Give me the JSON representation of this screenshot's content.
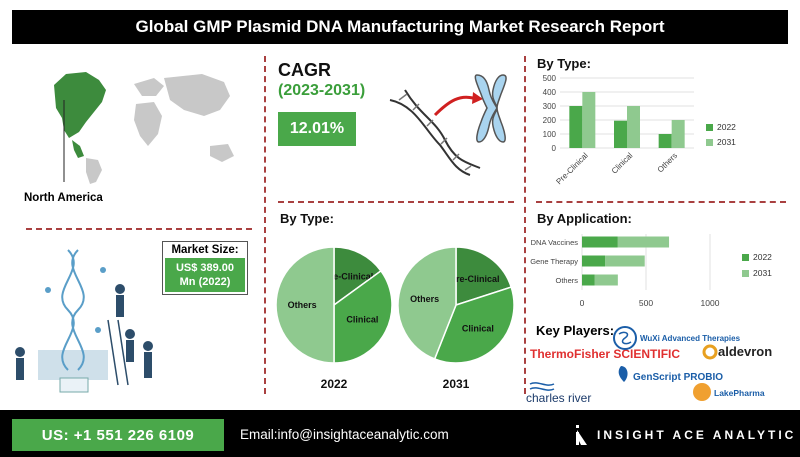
{
  "header": {
    "title": "Global GMP Plasmid DNA Manufacturing Market Research Report"
  },
  "region": {
    "label": "North America"
  },
  "market_size": {
    "heading": "Market Size:",
    "value_line1": "US$ 389.00",
    "value_line2": "Mn (2022)"
  },
  "cagr": {
    "heading": "CAGR",
    "period": "(2023-2031)",
    "value": "12.01%"
  },
  "pie_section": {
    "heading": "By Type:"
  },
  "bar_type_section": {
    "heading": "By Type:"
  },
  "bar_app_section": {
    "heading": "By Application:"
  },
  "key_players": {
    "heading": "Key Players:",
    "logos": [
      "ThermoFisher SCIENTIFIC",
      "WuXi Advanced Therapies",
      "aldevron",
      "GenScript PROBIO",
      "charles river",
      "LakePharma"
    ]
  },
  "footer": {
    "phone": "US: +1 551 226 6109",
    "email": "Email:info@insightaceanalytic.com",
    "brand": "INSIGHT ACE ANALYTIC"
  },
  "colors": {
    "dark_green": "#3d8b3d",
    "mid_green": "#4aa84a",
    "light_green": "#8fc98f",
    "accent_red": "#a94040"
  },
  "chart_data": [
    {
      "type": "pie",
      "title": "2022",
      "slices": [
        {
          "label": "Pre-Clinical",
          "value": 15
        },
        {
          "label": "Clinical",
          "value": 35
        },
        {
          "label": "Others",
          "value": 50
        }
      ]
    },
    {
      "type": "pie",
      "title": "2031",
      "slices": [
        {
          "label": "Pre-Clinical",
          "value": 20
        },
        {
          "label": "Clinical",
          "value": 36
        },
        {
          "label": "Others",
          "value": 44
        }
      ]
    },
    {
      "type": "bar",
      "categories": [
        "Pre-Clinical",
        "Clinical",
        "Others"
      ],
      "series": [
        {
          "name": "2022",
          "values": [
            300,
            195,
            100
          ]
        },
        {
          "name": "2031",
          "values": [
            400,
            300,
            200
          ]
        }
      ],
      "ylim": [
        0,
        500
      ],
      "yticks": [
        "0",
        "100",
        "200",
        "300",
        "400",
        "500"
      ],
      "legend": "right"
    },
    {
      "type": "bar",
      "orientation": "horizontal-stacked",
      "categories": [
        "DNA Vaccines",
        "Gene Therapy",
        "Others"
      ],
      "series": [
        {
          "name": "2022",
          "values": [
            280,
            180,
            100
          ]
        },
        {
          "name": "2031",
          "values": [
            400,
            310,
            180
          ]
        }
      ],
      "xlim": [
        0,
        1000
      ],
      "xticks": [
        "0",
        "500",
        "1000"
      ],
      "legend": "right"
    }
  ]
}
